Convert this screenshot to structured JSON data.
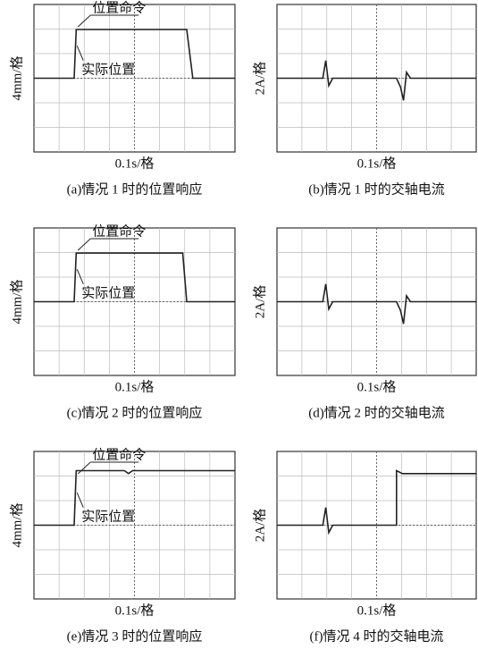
{
  "panels": [
    {
      "y_label": "4mm/格",
      "x_label": "0.1s/格",
      "caption": "(a)情况 1 时的位置响应",
      "annotations": [
        "位置命令",
        "实际位置"
      ]
    },
    {
      "y_label": "2A/格",
      "x_label": "0.1s/格",
      "caption": "(b)情况 1 时的交轴电流"
    },
    {
      "y_label": "4mm/格",
      "x_label": "0.1s/格",
      "caption": "(c)情况 2 时的位置响应",
      "annotations": [
        "位置命令",
        "实际位置"
      ]
    },
    {
      "y_label": "2A/格",
      "x_label": "0.1s/格",
      "caption": "(d)情况 2 时的交轴电流"
    },
    {
      "y_label": "4mm/格",
      "x_label": "0.1s/格",
      "caption": "(e)情况 3 时的位置响应",
      "annotations": [
        "位置命令",
        "实际位置"
      ]
    },
    {
      "y_label": "2A/格",
      "x_label": "0.1s/格",
      "caption": "(f)情况 4 时的交轴电流"
    }
  ]
}
